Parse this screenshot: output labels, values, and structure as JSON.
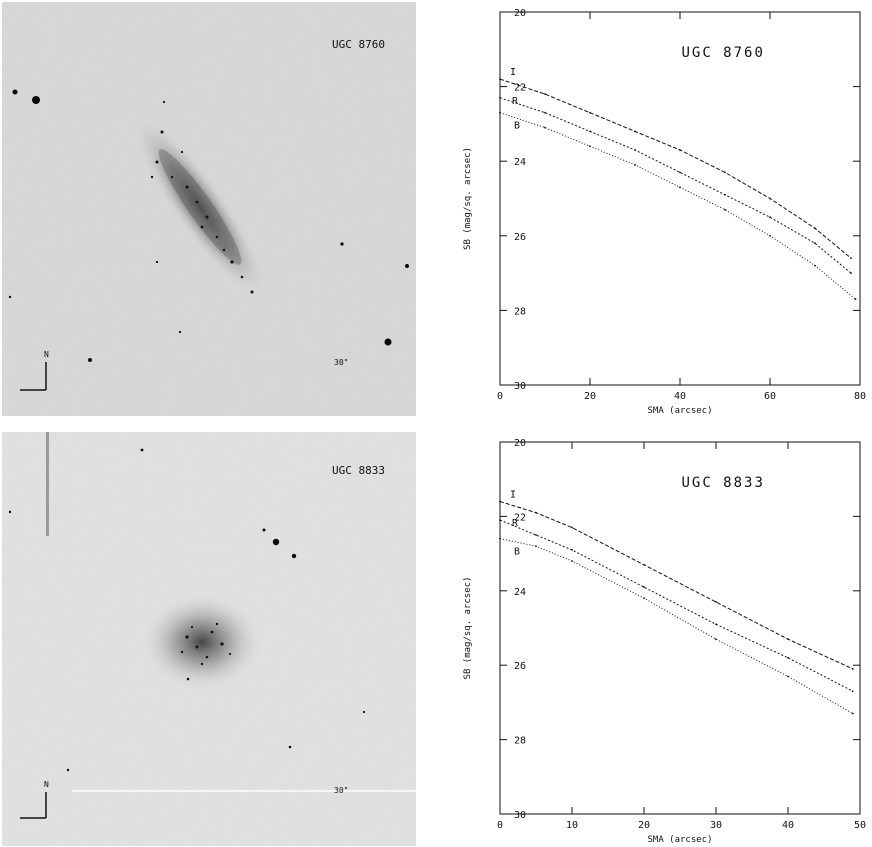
{
  "images": [
    {
      "galaxy_label": "UGC 8760",
      "scale_label": "30\"",
      "compass_n": "N"
    },
    {
      "galaxy_label": "UGC 8833",
      "scale_label": "30\"",
      "compass_n": "N"
    }
  ],
  "chart_data": [
    {
      "type": "line",
      "title": "UGC 8760",
      "xlabel": "SMA (arcsec)",
      "ylabel": "SB (mag/sq. arcsec)",
      "xlim": [
        0,
        80
      ],
      "ylim": [
        30,
        20
      ],
      "xticks": [
        0,
        20,
        40,
        60,
        80
      ],
      "yticks": [
        20,
        22,
        24,
        26,
        28,
        30
      ],
      "ytick_labels": [
        "20",
        "22",
        "24",
        "26",
        "28",
        "30"
      ],
      "series": [
        {
          "name": "",
          "label": "I",
          "x": [
            0,
            10,
            20,
            30,
            40,
            50,
            60,
            70,
            78
          ],
          "y": [
            21.8,
            22.2,
            22.7,
            23.2,
            23.7,
            24.3,
            25.0,
            25.8,
            26.6
          ]
        },
        {
          "name": "",
          "label": "R",
          "x": [
            0,
            10,
            20,
            30,
            40,
            50,
            60,
            70,
            78
          ],
          "y": [
            22.3,
            22.7,
            23.2,
            23.7,
            24.3,
            24.9,
            25.5,
            26.2,
            27.0
          ]
        },
        {
          "name": "",
          "label": "B",
          "x": [
            0,
            10,
            20,
            30,
            40,
            50,
            60,
            70,
            79
          ],
          "y": [
            22.7,
            23.1,
            23.6,
            24.1,
            24.7,
            25.3,
            26.0,
            26.8,
            27.7
          ]
        }
      ],
      "grid": false
    },
    {
      "type": "line",
      "title": "UGC 8833",
      "xlabel": "SMA (arcsec)",
      "ylabel": "SB (mag/sq. arcsec)",
      "xlim": [
        0,
        50
      ],
      "ylim": [
        30,
        20
      ],
      "xticks": [
        0,
        10,
        20,
        30,
        40,
        50
      ],
      "yticks": [
        20,
        22,
        24,
        26,
        28,
        30
      ],
      "ytick_labels": [
        "20",
        "22",
        "24",
        "26",
        "28",
        "30"
      ],
      "series": [
        {
          "name": "",
          "label": "I",
          "x": [
            0,
            5,
            10,
            20,
            30,
            40,
            49
          ],
          "y": [
            21.6,
            21.9,
            22.3,
            23.3,
            24.3,
            25.3,
            26.1
          ]
        },
        {
          "name": "",
          "label": "R",
          "x": [
            0,
            5,
            10,
            20,
            30,
            40,
            49
          ],
          "y": [
            22.1,
            22.5,
            22.9,
            23.9,
            24.9,
            25.8,
            26.7
          ]
        },
        {
          "name": "",
          "label": "B",
          "x": [
            0,
            5,
            10,
            20,
            30,
            40,
            49
          ],
          "y": [
            22.6,
            22.8,
            23.2,
            24.2,
            25.3,
            26.3,
            27.3
          ]
        }
      ],
      "grid": false
    }
  ]
}
